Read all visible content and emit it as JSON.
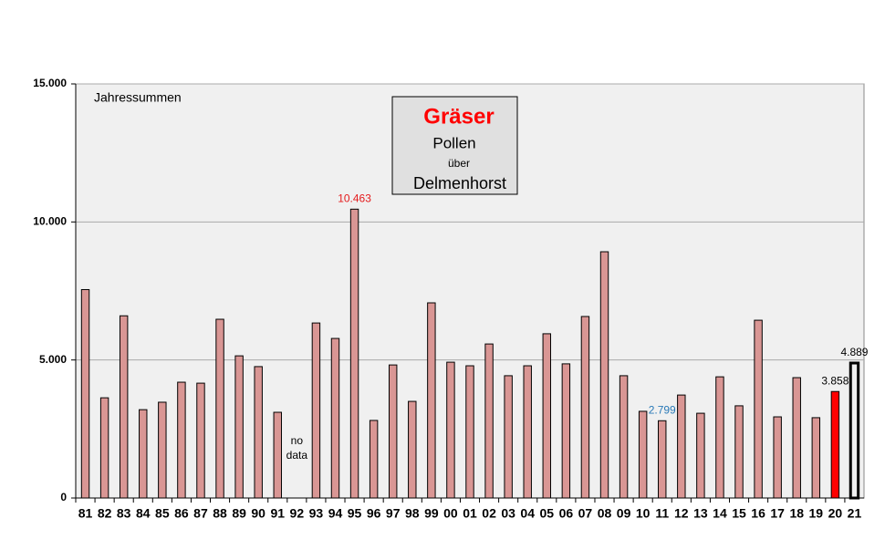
{
  "chart_data": {
    "type": "bar",
    "title": "Gräser",
    "title_lines": [
      "Pollen",
      "über",
      "Delmenhorst"
    ],
    "annotation": "Jahressummen",
    "missing_note": [
      "no",
      "data"
    ],
    "categories": [
      "81",
      "82",
      "83",
      "84",
      "85",
      "86",
      "87",
      "88",
      "89",
      "90",
      "91",
      "92",
      "93",
      "94",
      "95",
      "96",
      "97",
      "98",
      "99",
      "00",
      "01",
      "02",
      "03",
      "04",
      "05",
      "06",
      "07",
      "08",
      "09",
      "10",
      "11",
      "12",
      "13",
      "14",
      "15",
      "16",
      "17",
      "18",
      "19",
      "20",
      "21"
    ],
    "values": [
      7550,
      3630,
      6600,
      3200,
      3470,
      4195,
      4160,
      6475,
      5150,
      4760,
      3105,
      null,
      6340,
      5780,
      10463,
      2810,
      4820,
      3500,
      7070,
      4920,
      4790,
      5580,
      4430,
      4790,
      5950,
      4860,
      6575,
      8920,
      4430,
      3140,
      2799,
      3730,
      3070,
      4390,
      3340,
      6440,
      2940,
      4360,
      2910,
      3858,
      4889
    ],
    "value_labels": [
      null,
      null,
      null,
      null,
      null,
      null,
      null,
      null,
      null,
      null,
      null,
      null,
      null,
      null,
      "10.463",
      null,
      null,
      null,
      null,
      null,
      null,
      null,
      null,
      null,
      null,
      null,
      null,
      null,
      null,
      null,
      "2.799",
      null,
      null,
      null,
      null,
      null,
      null,
      null,
      null,
      "3.858",
      "4.889"
    ],
    "label_colors": [
      null,
      null,
      null,
      null,
      null,
      null,
      null,
      null,
      null,
      null,
      null,
      null,
      null,
      null,
      "#e41a1c",
      null,
      null,
      null,
      null,
      null,
      null,
      null,
      null,
      null,
      null,
      null,
      null,
      null,
      null,
      null,
      "#2a7ab8",
      null,
      null,
      null,
      null,
      null,
      null,
      null,
      null,
      "#000000",
      "#000000"
    ],
    "color": "#d99694",
    "colors": [
      null,
      null,
      null,
      null,
      null,
      null,
      null,
      null,
      null,
      null,
      null,
      null,
      null,
      null,
      null,
      null,
      null,
      null,
      null,
      null,
      null,
      null,
      null,
      null,
      null,
      null,
      null,
      null,
      null,
      null,
      null,
      null,
      null,
      null,
      null,
      null,
      null,
      null,
      null,
      "#ff0000",
      "#f0f0f0"
    ],
    "edge_widths": [
      1,
      1,
      1,
      1,
      1,
      1,
      1,
      1,
      1,
      1,
      1,
      1,
      1,
      1,
      1,
      1,
      1,
      1,
      1,
      1,
      1,
      1,
      1,
      1,
      1,
      1,
      1,
      1,
      1,
      1,
      1,
      1,
      1,
      1,
      1,
      1,
      1,
      1,
      1,
      1,
      3
    ],
    "ylim": [
      0,
      15000
    ],
    "yticks": [
      0,
      {
        "value": 5000,
        "label": "5.000"
      },
      {
        "value": 10000,
        "label": "10.000"
      },
      {
        "value": 15000,
        "label": "15.000"
      }
    ],
    "grid": true
  }
}
